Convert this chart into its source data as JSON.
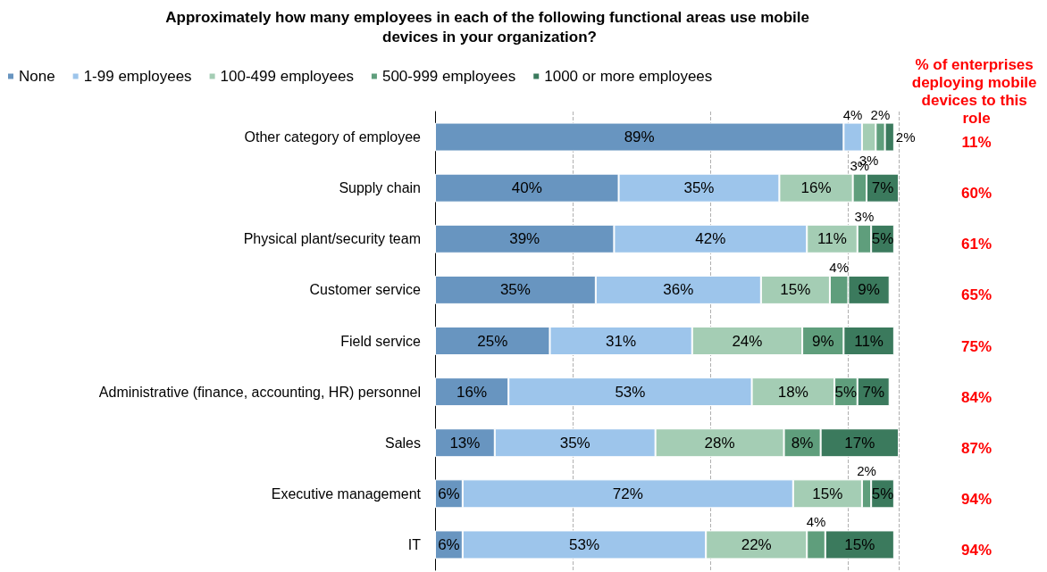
{
  "chart_data": {
    "type": "bar",
    "orientation": "horizontal",
    "stacked": true,
    "title": "Approximately how many employees in each of the following functional areas use mobile devices in your organization?",
    "categories": [
      "Other category of employee",
      "Supply chain",
      "Physical plant/security team",
      "Customer service",
      "Field service",
      "Administrative (finance, accounting, HR) personnel",
      "Sales",
      "Executive management",
      "IT"
    ],
    "series": [
      {
        "name": "None",
        "color": "#6895c0",
        "values": [
          89,
          40,
          39,
          35,
          25,
          16,
          13,
          6,
          6
        ],
        "value_labels": [
          "89%",
          "40%",
          "39%",
          "35%",
          "25%",
          "16%",
          "13%",
          "6%",
          "6%"
        ]
      },
      {
        "name": "1-99 employees",
        "color": "#9dc5eb",
        "values": [
          4,
          35,
          42,
          36,
          31,
          53,
          35,
          72,
          53
        ],
        "value_labels": [
          "4%",
          "35%",
          "42%",
          "36%",
          "31%",
          "53%",
          "35%",
          "72%",
          "53%"
        ]
      },
      {
        "name": "100-499 employees",
        "color": "#a4cdb4",
        "values": [
          3,
          16,
          11,
          15,
          24,
          18,
          28,
          15,
          22
        ],
        "value_labels": [
          "3%",
          "16%",
          "11%",
          "15%",
          "24%",
          "18%",
          "28%",
          "15%",
          "22%"
        ]
      },
      {
        "name": "500-999 employees",
        "color": "#5f9e7c",
        "values": [
          2,
          3,
          3,
          4,
          9,
          5,
          8,
          2,
          4
        ],
        "value_labels": [
          "2%",
          "3%",
          "3%",
          "4%",
          "9%",
          "5%",
          "8%",
          "2%",
          "4%"
        ]
      },
      {
        "name": "1000 or more employees",
        "color": "#3b7a5d",
        "values": [
          2,
          7,
          5,
          9,
          11,
          7,
          17,
          5,
          15
        ],
        "value_labels": [
          "2%",
          "7%",
          "5%",
          "9%",
          "11%",
          "7%",
          "17%",
          "5%",
          "15%"
        ]
      }
    ],
    "tick_labels": "y",
    "grid": "x",
    "legend": "top left",
    "annotations": [
      "% of enterprises deploying mobile devices to this role",
      "11%",
      "60%",
      "61%",
      "65%",
      "75%",
      "84%",
      "87%",
      "94%",
      "94%"
    ]
  }
}
